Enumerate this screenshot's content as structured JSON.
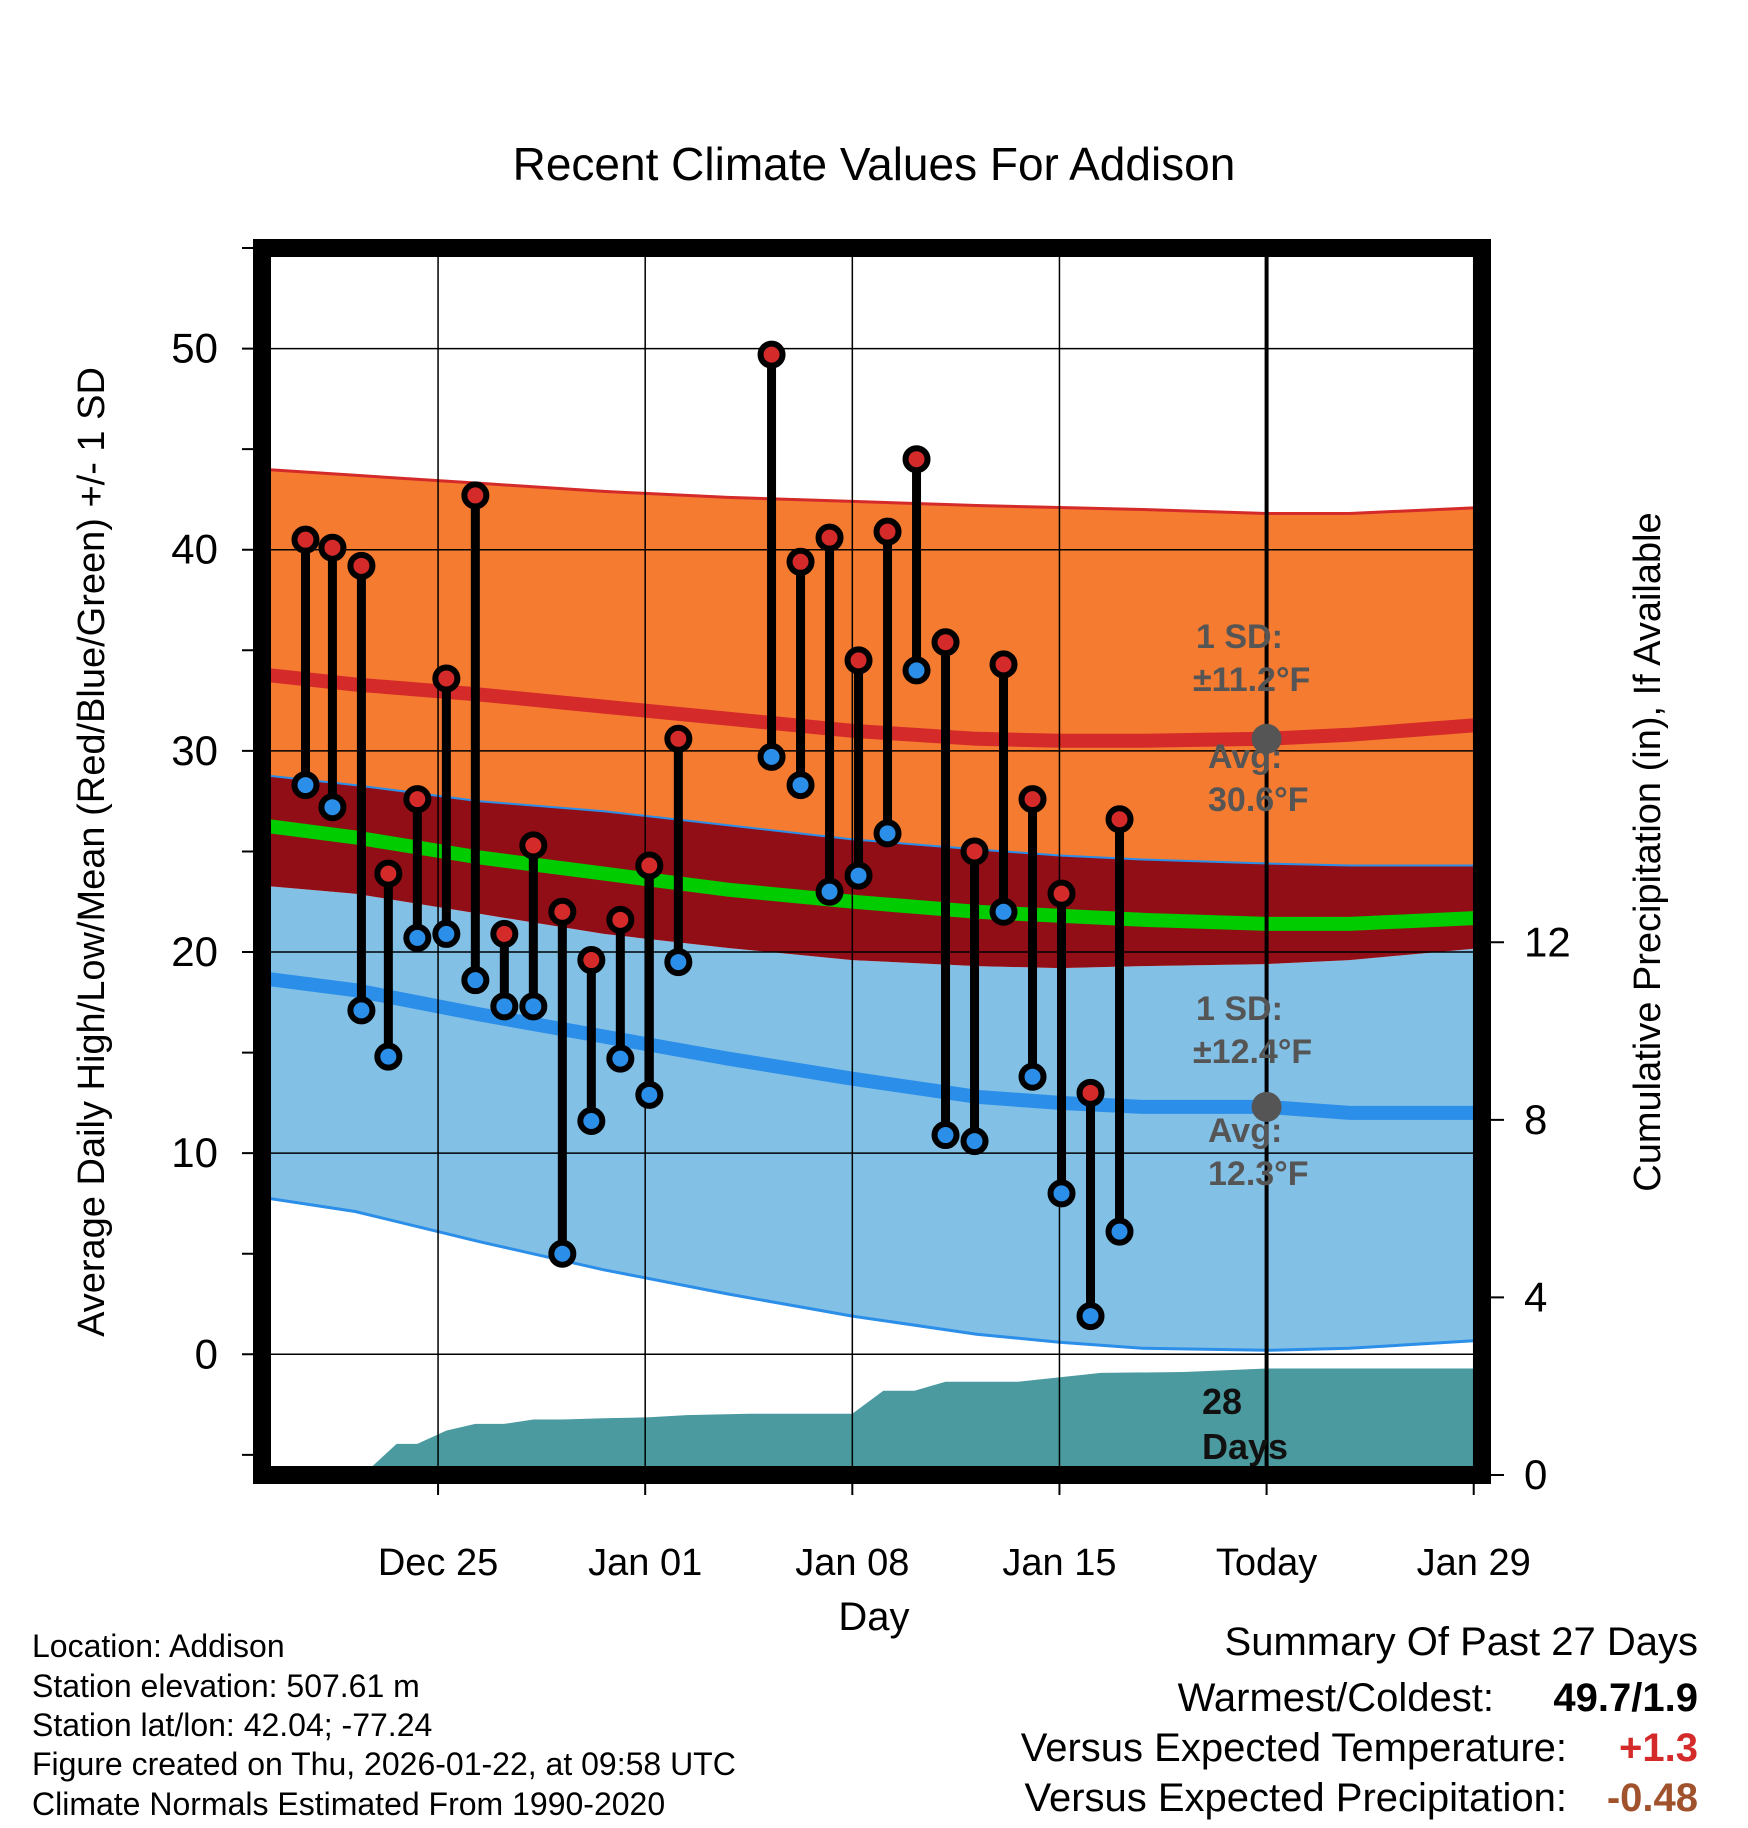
{
  "chart_data": {
    "type": "line",
    "title": "Recent Climate Values For Addison",
    "xlabel": "Day",
    "ylabel": "Average Daily High/Low/Mean (Red/Blue/Green) +/- 1 SD",
    "ylabel_right": "Cumulative Precipitation (in), If Available",
    "ylim": [
      -6,
      55
    ],
    "ylim_right": [
      0,
      27.64
    ],
    "xlim": [
      -4.5,
      54.4
    ],
    "y_ticks": [
      0,
      10,
      20,
      30,
      40,
      50
    ],
    "y_right_ticks": [
      0,
      4,
      8,
      12
    ],
    "x_ticks": [
      {
        "day": 4,
        "label": "Dec 25"
      },
      {
        "day": 14,
        "label": "Jan 01"
      },
      {
        "day": 24,
        "label": "Jan 08"
      },
      {
        "day": 34,
        "label": "Jan 15"
      },
      {
        "day": 44,
        "label": "Today"
      },
      {
        "day": 54,
        "label": "Jan 29"
      }
    ],
    "today_day": 44,
    "normals": {
      "days": [
        -4.5,
        0,
        6,
        12,
        18,
        24,
        30,
        34,
        38,
        44,
        48,
        54.4
      ],
      "high_mean": [
        33.8,
        33.3,
        32.8,
        32.2,
        31.6,
        31.0,
        30.6,
        30.5,
        30.5,
        30.6,
        30.8,
        31.3
      ],
      "high_upper": [
        44.0,
        43.7,
        43.3,
        42.9,
        42.6,
        42.4,
        42.2,
        42.1,
        42.0,
        41.8,
        41.8,
        42.1
      ],
      "high_lower": [
        28.8,
        28.3,
        27.5,
        27.0,
        26.3,
        25.6,
        25.1,
        24.8,
        24.6,
        24.4,
        24.3,
        24.3
      ],
      "mean": [
        26.3,
        25.7,
        24.7,
        23.9,
        23.1,
        22.5,
        22.0,
        21.8,
        21.6,
        21.4,
        21.4,
        21.7
      ],
      "low_mean": [
        18.7,
        18.1,
        16.9,
        15.8,
        14.7,
        13.7,
        12.8,
        12.5,
        12.3,
        12.3,
        12.0,
        12.0
      ],
      "low_upper": [
        23.3,
        22.9,
        21.9,
        20.9,
        20.2,
        19.6,
        19.3,
        19.2,
        19.3,
        19.4,
        19.6,
        20.2
      ],
      "low_lower": [
        7.8,
        7.1,
        5.6,
        4.2,
        3.0,
        1.9,
        1.0,
        0.6,
        0.3,
        0.2,
        0.3,
        0.7
      ]
    },
    "series": [
      {
        "name": "Daily High",
        "color": "#d42a2a",
        "points": [
          [
            -2.4,
            40.5
          ],
          [
            -1.1,
            40.1
          ],
          [
            0.3,
            39.2
          ],
          [
            1.6,
            23.9
          ],
          [
            3.0,
            27.6
          ],
          [
            4.4,
            33.6
          ],
          [
            5.8,
            42.7
          ],
          [
            7.2,
            20.9
          ],
          [
            8.6,
            25.3
          ],
          [
            10.0,
            22.0
          ],
          [
            11.4,
            19.6
          ],
          [
            12.8,
            21.6
          ],
          [
            14.2,
            24.3
          ],
          [
            15.6,
            30.6
          ],
          [
            20.1,
            49.7
          ],
          [
            21.5,
            39.4
          ],
          [
            22.9,
            40.6
          ],
          [
            24.3,
            34.5
          ],
          [
            25.7,
            40.9
          ],
          [
            27.1,
            44.5
          ],
          [
            28.5,
            35.4
          ],
          [
            29.9,
            25.0
          ],
          [
            31.3,
            34.3
          ],
          [
            32.7,
            27.6
          ],
          [
            34.1,
            22.9
          ],
          [
            35.5,
            13.0
          ],
          [
            36.9,
            26.6
          ]
        ]
      },
      {
        "name": "Daily Low",
        "color": "#2b8ee8",
        "points": [
          [
            -2.4,
            28.3
          ],
          [
            -1.1,
            27.2
          ],
          [
            0.3,
            17.1
          ],
          [
            1.6,
            14.8
          ],
          [
            3.0,
            20.7
          ],
          [
            4.4,
            20.9
          ],
          [
            5.8,
            18.6
          ],
          [
            7.2,
            17.3
          ],
          [
            8.6,
            17.3
          ],
          [
            10.0,
            5.0
          ],
          [
            11.4,
            11.6
          ],
          [
            12.8,
            14.7
          ],
          [
            14.2,
            12.9
          ],
          [
            15.6,
            19.5
          ],
          [
            20.1,
            29.7
          ],
          [
            21.5,
            28.3
          ],
          [
            22.9,
            23.0
          ],
          [
            24.3,
            23.8
          ],
          [
            25.7,
            25.9
          ],
          [
            27.1,
            34.0
          ],
          [
            28.5,
            10.9
          ],
          [
            29.9,
            10.6
          ],
          [
            31.3,
            22.0
          ],
          [
            32.7,
            13.8
          ],
          [
            34.1,
            8.0
          ],
          [
            35.5,
            1.9
          ],
          [
            36.9,
            6.1
          ]
        ]
      }
    ],
    "precipitation": {
      "days": [
        -3.2,
        -2.3,
        -1.0,
        0.6,
        2.0,
        3.0,
        4.4,
        5.8,
        7.2,
        8.6,
        10.0,
        12.0,
        14.2,
        16.0,
        19.0,
        20.0,
        21.5,
        24.0,
        25.5,
        27.0,
        28.5,
        32.0,
        36.0,
        40.0,
        44.0,
        54.4
      ],
      "values": [
        0.0,
        0.1,
        0.1,
        0.1,
        0.7,
        0.7,
        1.0,
        1.15,
        1.15,
        1.25,
        1.25,
        1.28,
        1.3,
        1.35,
        1.38,
        1.38,
        1.38,
        1.38,
        1.9,
        1.9,
        2.1,
        2.1,
        2.3,
        2.32,
        2.4,
        2.4
      ]
    },
    "annotations": {
      "high_sd_label": "1 SD:",
      "high_sd_value": "±11.2°F",
      "high_avg_label": "Avg:",
      "high_avg_value": "30.6°F",
      "high_avg_point": 30.6,
      "low_sd_label": "1 SD:",
      "low_sd_value": "±12.4°F",
      "low_avg_label": "Avg:",
      "low_avg_value": "12.3°F",
      "low_avg_point": 12.3,
      "days_count": "28",
      "days_label": "Days"
    },
    "colors": {
      "high_band": "#f47b30",
      "high_line": "#d42a2a",
      "overlap_band": "#920e16",
      "low_band": "#82c0e6",
      "low_line": "#2b8ee8",
      "low_band_edge": "#2b8ee8",
      "mean_line": "#00cc00",
      "precip_fill": "#4a9aa0",
      "annotation_text": "#555555",
      "high_marker": "#d42a2a",
      "low_marker": "#2b8ee8"
    }
  },
  "footer": {
    "location": "Location: Addison",
    "elevation": "Station elevation: 507.61 m",
    "latlon": "Station lat/lon: 42.04; -77.24",
    "created": "Figure created on Thu, 2026-01-22, at 09:58 UTC",
    "normals": "Climate Normals Estimated From 1990-2020"
  },
  "summary": {
    "title": "Summary Of Past 27 Days",
    "warmest_label": "Warmest/Coldest:",
    "warmest_value": "49.7/1.9",
    "temp_label": "Versus Expected Temperature:",
    "temp_value": "+1.3",
    "temp_color": "#d42a2a",
    "precip_label": "Versus Expected Precipitation:",
    "precip_value": "-0.48",
    "precip_color": "#a0522d"
  }
}
